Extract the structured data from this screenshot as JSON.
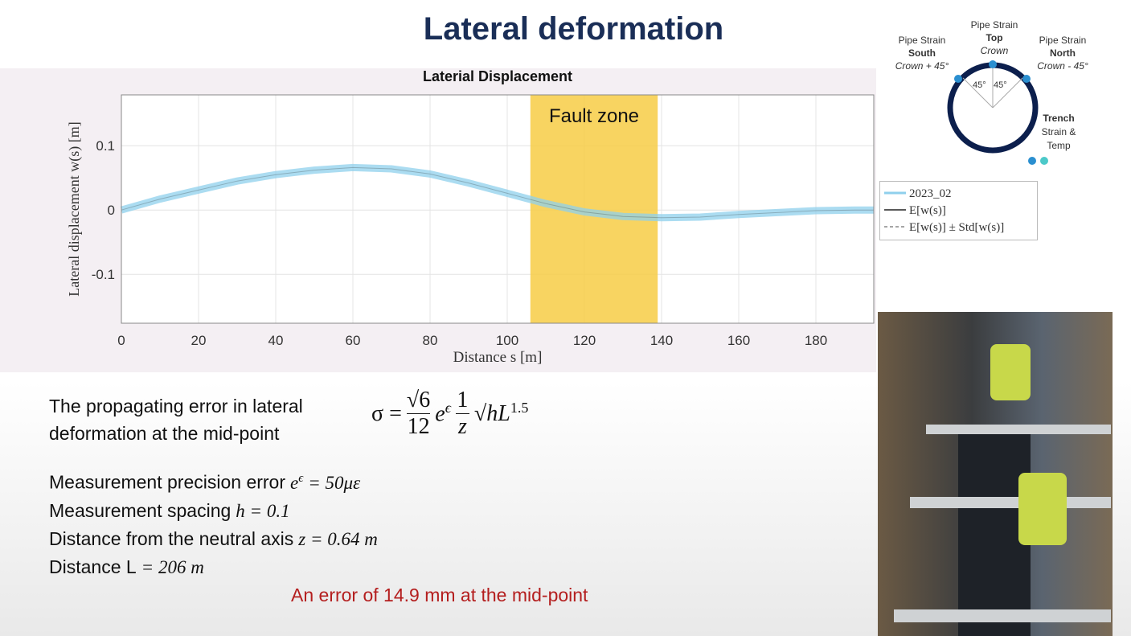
{
  "title": "Lateral deformation",
  "chart_data": {
    "type": "line",
    "title": "Laterial Displacement",
    "x_label": "Distance s [m]",
    "y_label": "Lateral displacement w(s) [m]",
    "x": [
      0,
      10,
      20,
      30,
      40,
      50,
      60,
      70,
      80,
      90,
      100,
      110,
      120,
      130,
      140,
      150,
      160,
      170,
      180,
      190,
      195
    ],
    "series": [
      {
        "name": "2023_02",
        "color": "#8fd0ec",
        "values": [
          0,
          0.017,
          0.031,
          0.045,
          0.055,
          0.062,
          0.066,
          0.064,
          0.056,
          0.042,
          0.026,
          0.01,
          -0.003,
          -0.01,
          -0.012,
          -0.011,
          -0.007,
          -0.004,
          -0.001,
          0,
          0
        ]
      },
      {
        "name": "E[w(s)]",
        "color": "#222222",
        "values": [
          0,
          0.017,
          0.031,
          0.045,
          0.055,
          0.062,
          0.066,
          0.064,
          0.056,
          0.042,
          0.026,
          0.01,
          -0.003,
          -0.01,
          -0.012,
          -0.011,
          -0.007,
          -0.004,
          -0.001,
          0,
          0
        ]
      },
      {
        "name": "E[w(s)] ± Std[w(s)]",
        "color": "#888888",
        "dashed": true,
        "values": [
          null,
          null,
          null,
          null,
          null,
          null,
          null,
          null,
          null,
          null,
          null,
          null,
          null,
          null,
          null,
          null,
          null,
          null,
          null,
          null,
          null
        ]
      }
    ],
    "xlim": [
      0,
      195
    ],
    "xticks": [
      0,
      20,
      40,
      60,
      80,
      100,
      120,
      140,
      160,
      180
    ],
    "ylim": [
      -0.176,
      0.179
    ],
    "yticks": [
      -0.1,
      0,
      0.1
    ],
    "grid": true,
    "fault_zone": {
      "label": "Fault zone",
      "range": [
        106,
        139
      ],
      "color": "#f7cc45"
    }
  },
  "diagram": {
    "top": [
      "Pipe Strain",
      "Top",
      "Crown"
    ],
    "south": [
      "Pipe Strain",
      "South",
      "Crown + 45°"
    ],
    "north": [
      "Pipe Strain",
      "North",
      "Crown - 45°"
    ],
    "trench": [
      "Trench",
      "Strain &",
      "Temp"
    ],
    "angles": [
      "45°",
      "45°"
    ]
  },
  "text": {
    "intro": [
      "The propagating error in lateral",
      "deformation at the mid-point"
    ],
    "formula": {
      "lhs": "σ =",
      "num": "√6",
      "den": "12",
      "e": "e",
      "eps": "ϵ",
      "num2": "1",
      "den2": "z",
      "root": "√h",
      "L": "L",
      "exp": "1.5"
    },
    "items": [
      {
        "label": "Measurement precision error",
        "math": "e",
        "sup": "ϵ",
        "rest": "= 50με"
      },
      {
        "label": "Measurement spacing",
        "math": "h = 0.1"
      },
      {
        "label": "Distance from the neutral axis",
        "math": "z = 0.64 m"
      },
      {
        "label": "Distance L",
        "math": "= 206 m"
      }
    ],
    "conclusion": "An error of 14.9 mm at the mid-point"
  }
}
